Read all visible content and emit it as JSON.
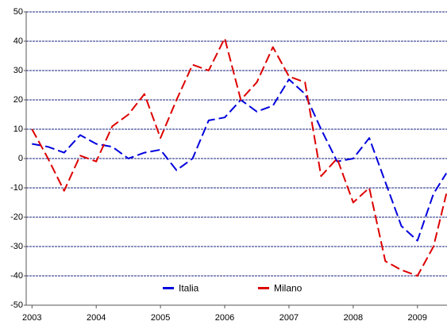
{
  "chart_data": {
    "type": "line",
    "x": [
      2003,
      2003.25,
      2003.5,
      2003.75,
      2004,
      2004.25,
      2004.5,
      2004.75,
      2005,
      2005.25,
      2005.5,
      2005.75,
      2006,
      2006.25,
      2006.5,
      2006.75,
      2007,
      2007.25,
      2007.5,
      2007.75,
      2008,
      2008.25,
      2008.5,
      2008.75,
      2009,
      2009.25,
      2009.45
    ],
    "series": [
      {
        "name": "Italia",
        "color": "#0000dd",
        "values": [
          5,
          4,
          2,
          8,
          5,
          4,
          0,
          2,
          3,
          -4,
          0,
          13,
          14,
          20,
          16,
          18,
          27,
          22,
          10,
          -1,
          0,
          7,
          -8,
          -23,
          -28,
          -12,
          -5
        ]
      },
      {
        "name": "Milano",
        "color": "#dd0000",
        "values": [
          10,
          0,
          -11,
          1,
          -1,
          11,
          15,
          22,
          7,
          20,
          32,
          30,
          41,
          20,
          26,
          38,
          28,
          26,
          -6,
          0,
          -15,
          -10,
          -35,
          -38,
          -40,
          -30,
          -12
        ]
      }
    ],
    "xlim": [
      2002.91,
      2009.46
    ],
    "xticks": [
      2003,
      2004,
      2005,
      2006,
      2007,
      2008,
      2009
    ],
    "ylim": [
      -50,
      50
    ],
    "yticks": [
      -50,
      -40,
      -30,
      -20,
      -10,
      0,
      10,
      20,
      30,
      40,
      50
    ],
    "grid": true,
    "legend": "bottom"
  }
}
